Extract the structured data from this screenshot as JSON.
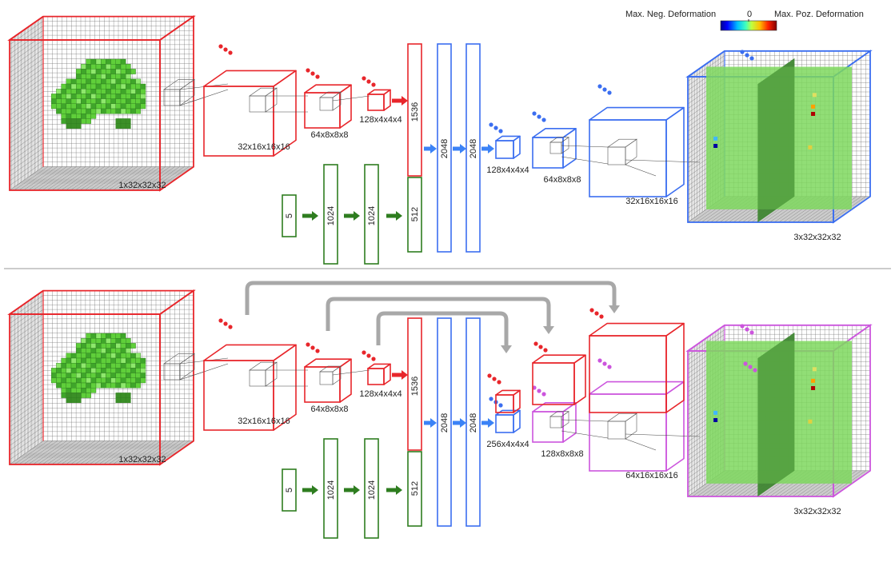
{
  "colors": {
    "encoder": "#e8262b",
    "decoder": "#3b6ef0",
    "decoder_skip": "#cc55dd",
    "param": "#2e7d1f",
    "arrow_green": "#2e7d1f",
    "arrow_blue": "#3b82f6",
    "arrow_red": "#e8262b",
    "skip": "#a8a8a8",
    "voxel": "#5fcf3a",
    "plane": "#7ed85e",
    "grid": "#6a6a6a"
  },
  "legend": {
    "neg_label": "Max. Neg. Deformation",
    "zero_label": "0",
    "pos_label": "Max. Poz. Deformation"
  },
  "top": {
    "input_label": "1x32x32x32",
    "enc1_label": "32x16x16x16",
    "enc2_label": "64x8x8x8",
    "enc3_label": "128x4x4x4",
    "concat_top_label": "1536",
    "concat_bottom_label": "512",
    "param_in_label": "5",
    "param_fc1_label": "1024",
    "param_fc2_label": "1024",
    "fc1_label": "2048",
    "fc2_label": "2048",
    "dec1_label": "128x4x4x4",
    "dec2_label": "64x8x8x8",
    "dec3_label": "32x16x16x16",
    "output_label": "3x32x32x32"
  },
  "bottom": {
    "input_label": "1x32x32x32",
    "enc1_label": "32x16x16x16",
    "enc2_label": "64x8x8x8",
    "enc3_label": "128x4x4x4",
    "concat_top_label": "1536",
    "concat_bottom_label": "512",
    "param_in_label": "5",
    "param_fc1_label": "1024",
    "param_fc2_label": "1024",
    "fc1_label": "2048",
    "fc2_label": "2048",
    "dec1_label": "256x4x4x4",
    "dec2_label": "128x8x8x8",
    "dec3_label": "64x16x16x16",
    "output_label": "3x32x32x32"
  }
}
